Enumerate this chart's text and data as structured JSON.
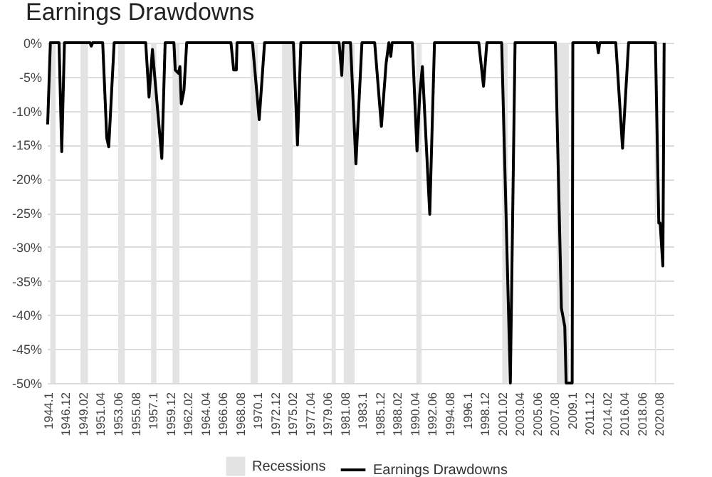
{
  "chart_data": {
    "type": "line",
    "title": "Earnings Drawdowns",
    "legend": "bottom",
    "grid": "y",
    "xlim": [
      "1944-09",
      "2022-06"
    ],
    "ylim": [
      -50,
      0
    ],
    "xticks": [
      {
        "value": "1944-10",
        "label": "1944.1"
      },
      {
        "value": "1946-12",
        "label": "1946.12"
      },
      {
        "value": "1949-02",
        "label": "1949.02"
      },
      {
        "value": "1951-04",
        "label": "1951.04"
      },
      {
        "value": "1953-06",
        "label": "1953.06"
      },
      {
        "value": "1955-08",
        "label": "1955.08"
      },
      {
        "value": "1957-10",
        "label": "1957.1"
      },
      {
        "value": "1959-12",
        "label": "1959.12"
      },
      {
        "value": "1962-02",
        "label": "1962.02"
      },
      {
        "value": "1964-04",
        "label": "1964.04"
      },
      {
        "value": "1966-06",
        "label": "1966.06"
      },
      {
        "value": "1968-08",
        "label": "1968.08"
      },
      {
        "value": "1970-10",
        "label": "1970.1"
      },
      {
        "value": "1972-12",
        "label": "1972.12"
      },
      {
        "value": "1975-02",
        "label": "1975.02"
      },
      {
        "value": "1977-04",
        "label": "1977.04"
      },
      {
        "value": "1979-06",
        "label": "1979.06"
      },
      {
        "value": "1981-08",
        "label": "1981.08"
      },
      {
        "value": "1983-10",
        "label": "1983.1"
      },
      {
        "value": "1985-12",
        "label": "1985.12"
      },
      {
        "value": "1988-02",
        "label": "1988.02"
      },
      {
        "value": "1990-04",
        "label": "1990.04"
      },
      {
        "value": "1992-06",
        "label": "1992.06"
      },
      {
        "value": "1994-08",
        "label": "1994.08"
      },
      {
        "value": "1996-10",
        "label": "1996.1"
      },
      {
        "value": "1998-12",
        "label": "1998.12"
      },
      {
        "value": "2001-02",
        "label": "2001.02"
      },
      {
        "value": "2003-04",
        "label": "2003.04"
      },
      {
        "value": "2005-06",
        "label": "2005.06"
      },
      {
        "value": "2007-08",
        "label": "2007.08"
      },
      {
        "value": "2009-10",
        "label": "2009.1"
      },
      {
        "value": "2011-12",
        "label": "2011.12"
      },
      {
        "value": "2014-02",
        "label": "2014.02"
      },
      {
        "value": "2016-04",
        "label": "2016.04"
      },
      {
        "value": "2018-06",
        "label": "2018.06"
      },
      {
        "value": "2020-08",
        "label": "2020.08"
      }
    ],
    "yticks": [
      {
        "value": 0,
        "label": "0%"
      },
      {
        "value": -5,
        "label": "-5%"
      },
      {
        "value": -10,
        "label": "-10%"
      },
      {
        "value": -15,
        "label": "-15%"
      },
      {
        "value": -20,
        "label": "-20%"
      },
      {
        "value": -25,
        "label": "-25%"
      },
      {
        "value": -30,
        "label": "-30%"
      },
      {
        "value": -35,
        "label": "-35%"
      },
      {
        "value": -40,
        "label": "-40%"
      },
      {
        "value": -45,
        "label": "-45%"
      },
      {
        "value": -50,
        "label": "-50%"
      }
    ],
    "bands": [
      {
        "axis": "x",
        "from": "1945-02",
        "to": "1945-10",
        "label": "Recessions",
        "color": "#e3e3e3"
      },
      {
        "axis": "x",
        "from": "1948-11",
        "to": "1949-10",
        "color": "#e3e3e3"
      },
      {
        "axis": "x",
        "from": "1953-07",
        "to": "1954-05",
        "color": "#e3e3e3"
      },
      {
        "axis": "x",
        "from": "1957-08",
        "to": "1958-04",
        "color": "#e3e3e3"
      },
      {
        "axis": "x",
        "from": "1960-04",
        "to": "1961-02",
        "color": "#e3e3e3"
      },
      {
        "axis": "x",
        "from": "1969-12",
        "to": "1970-11",
        "color": "#e3e3e3"
      },
      {
        "axis": "x",
        "from": "1973-11",
        "to": "1975-03",
        "color": "#e3e3e3"
      },
      {
        "axis": "x",
        "from": "1980-01",
        "to": "1980-07",
        "color": "#e3e3e3"
      },
      {
        "axis": "x",
        "from": "1981-07",
        "to": "1982-11",
        "color": "#e3e3e3"
      },
      {
        "axis": "x",
        "from": "1990-07",
        "to": "1991-03",
        "color": "#e3e3e3"
      },
      {
        "axis": "x",
        "from": "2001-03",
        "to": "2001-11",
        "color": "#e3e3e3"
      },
      {
        "axis": "x",
        "from": "2007-12",
        "to": "2009-06",
        "color": "#e3e3e3"
      },
      {
        "axis": "x",
        "from": "2020-02",
        "to": "2020-04",
        "color": "#e3e3e3"
      }
    ],
    "series": [
      {
        "name": "Earnings Drawdowns",
        "color": "#000000",
        "x": [
          "1944-10",
          "1945-02",
          "1946-03",
          "1946-07",
          "1946-11",
          "1950-01",
          "1950-03",
          "1950-05",
          "1951-08",
          "1952-02",
          "1952-05",
          "1953-01",
          "1956-12",
          "1957-05",
          "1957-10",
          "1958-12",
          "1959-05",
          "1960-06",
          "1960-08",
          "1961-01",
          "1961-03",
          "1961-05",
          "1961-09",
          "1962-01",
          "1967-07",
          "1967-11",
          "1968-03",
          "1968-04",
          "1970-03",
          "1971-01",
          "1971-09",
          "1975-04",
          "1975-10",
          "1976-03",
          "1980-12",
          "1981-04",
          "1981-06",
          "1982-05",
          "1983-01",
          "1983-10",
          "1985-05",
          "1986-03",
          "1986-10",
          "1987-02",
          "1987-05",
          "1987-07",
          "1990-01",
          "1990-08",
          "1990-12",
          "1991-04",
          "1992-03",
          "1992-10",
          "1998-04",
          "1998-11",
          "1999-04",
          "2001-02",
          "2002-03",
          "2002-10",
          "2007-10",
          "2008-07",
          "2008-12",
          "2009-02",
          "2009-11",
          "2009-12",
          "2012-12",
          "2013-02",
          "2013-04",
          "2015-04",
          "2016-02",
          "2016-11",
          "2020-03",
          "2020-08",
          "2020-10",
          "2021-02",
          "2021-04"
        ],
        "values": [
          -12,
          0,
          0,
          -16,
          0,
          0,
          -0.5,
          0,
          0,
          -14,
          -15.3,
          0,
          0,
          -8,
          -1,
          -17,
          0,
          0,
          -4,
          -4.5,
          -3.5,
          -9,
          -7,
          0,
          0,
          -4,
          -4,
          0,
          0,
          -11.3,
          0,
          0,
          -15,
          0,
          0,
          -4.8,
          0,
          0,
          -17.8,
          0,
          0,
          -12.3,
          -3,
          0,
          -2,
          0,
          0,
          -15.9,
          -7.7,
          -3.5,
          -25.2,
          0,
          0,
          -6.4,
          0,
          0,
          -50,
          0,
          0,
          -39,
          -41.7,
          -50,
          -50,
          0,
          0,
          -1.5,
          0,
          0,
          -15.5,
          0,
          0,
          -26.5,
          -26.5,
          -32.8,
          0
        ]
      }
    ]
  }
}
